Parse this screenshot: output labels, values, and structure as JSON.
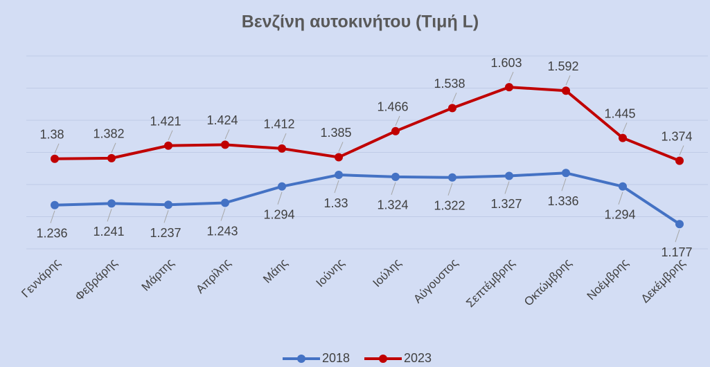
{
  "chart_data": {
    "type": "line",
    "title": "Βενζίνη αυτοκινήτου (Τιμή L)",
    "categories": [
      "Γεννάρης",
      "Φεβράρης",
      "Μάρτης",
      "Απρίλης",
      "Μάης",
      "Ιούνης",
      "Ιούλης",
      "Αύγουστος",
      "Σεπτέμβρης",
      "Οκτώμβρης",
      "Νοέμβρης",
      "Δεκέμβρης"
    ],
    "series": [
      {
        "name": "2018",
        "color": "#4472c4",
        "values": [
          1.236,
          1.241,
          1.237,
          1.243,
          1.294,
          1.33,
          1.324,
          1.322,
          1.327,
          1.336,
          1.294,
          1.177
        ]
      },
      {
        "name": "2023",
        "color": "#c00000",
        "values": [
          1.38,
          1.382,
          1.421,
          1.424,
          1.412,
          1.385,
          1.466,
          1.538,
          1.603,
          1.592,
          1.445,
          1.374
        ]
      }
    ],
    "ylim": [
      1.1,
      1.7
    ],
    "yticks": [
      1.1,
      1.2,
      1.3,
      1.4,
      1.5,
      1.6,
      1.7
    ],
    "grid": true,
    "legend": "bottom"
  }
}
